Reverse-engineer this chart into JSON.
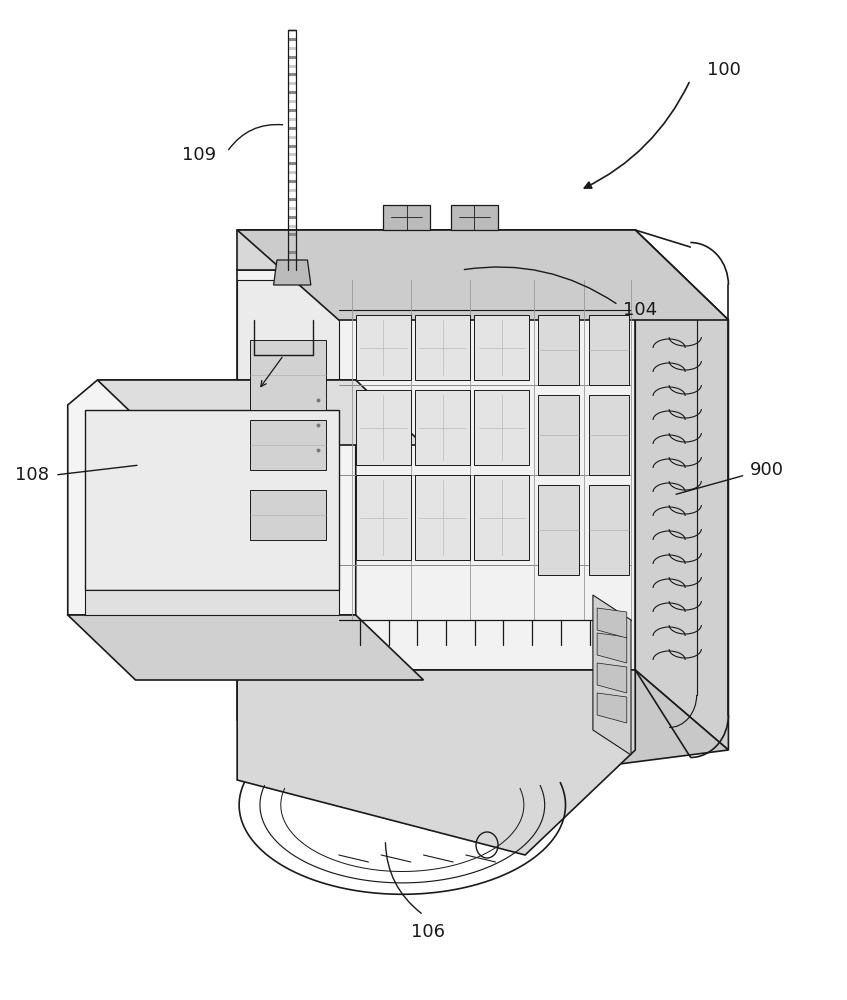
{
  "bg_color": "#ffffff",
  "line_color": "#1a1a1a",
  "line_width": 1.2,
  "fig_width": 8.47,
  "fig_height": 10.0
}
